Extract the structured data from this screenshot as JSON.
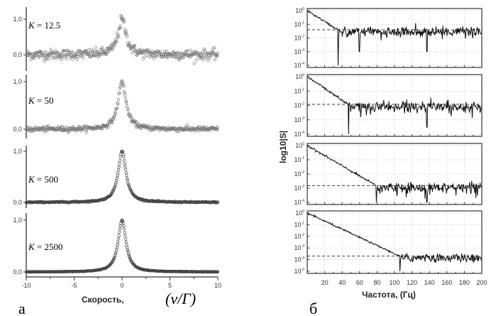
{
  "chart_data": [
    {
      "type": "scatter",
      "panel_letter": "а",
      "xlabel": "Скорость,",
      "xlabel_math": "(v/Γ)",
      "xlim": [
        -10,
        10
      ],
      "xticks": [
        "-10",
        "-5",
        "0",
        "5",
        "10"
      ],
      "yticks": [
        "1,0",
        "0,0"
      ],
      "ylim": [
        0,
        1
      ],
      "model": "lorentzian",
      "peak_center": 0,
      "half_width": 0.5,
      "points_per_panel": 400,
      "panels": [
        {
          "label": "K = 12.5",
          "k_symbol": "K",
          "k_value": "= 12.5",
          "noise_std": 0.07
        },
        {
          "label": "K = 50",
          "k_symbol": "K",
          "k_value": "= 50",
          "noise_std": 0.025
        },
        {
          "label": "K = 500",
          "k_symbol": "K",
          "k_value": "= 500",
          "noise_std": 0.006
        },
        {
          "label": "K = 2500",
          "k_symbol": "K",
          "k_value": "= 2500",
          "noise_std": 0.003
        }
      ]
    },
    {
      "type": "line",
      "panel_letter": "б",
      "xlabel": "Частота, (Гц)",
      "ylabel": "log10|S|",
      "xlim": [
        0,
        200
      ],
      "xticks": [
        "20",
        "40",
        "60",
        "80",
        "100",
        "120",
        "140",
        "160",
        "180",
        "200"
      ],
      "yscale": "log",
      "panels": [
        {
          "ylim_exp": [
            -4,
            0
          ],
          "cutoff_hz": 35,
          "plateau": 0.04,
          "dips_hz": [
            60,
            137
          ]
        },
        {
          "ylim_exp": [
            -4,
            0
          ],
          "cutoff_hz": 47,
          "plateau": 0.012,
          "dips_hz": [
            137
          ]
        },
        {
          "ylim_exp": [
            -4,
            0
          ],
          "cutoff_hz": 79,
          "plateau": 0.0015,
          "dips_hz": [
            137
          ]
        },
        {
          "ylim_exp": [
            -5,
            0
          ],
          "cutoff_hz": 106,
          "plateau": 0.0002,
          "dips_hz": []
        }
      ]
    }
  ]
}
